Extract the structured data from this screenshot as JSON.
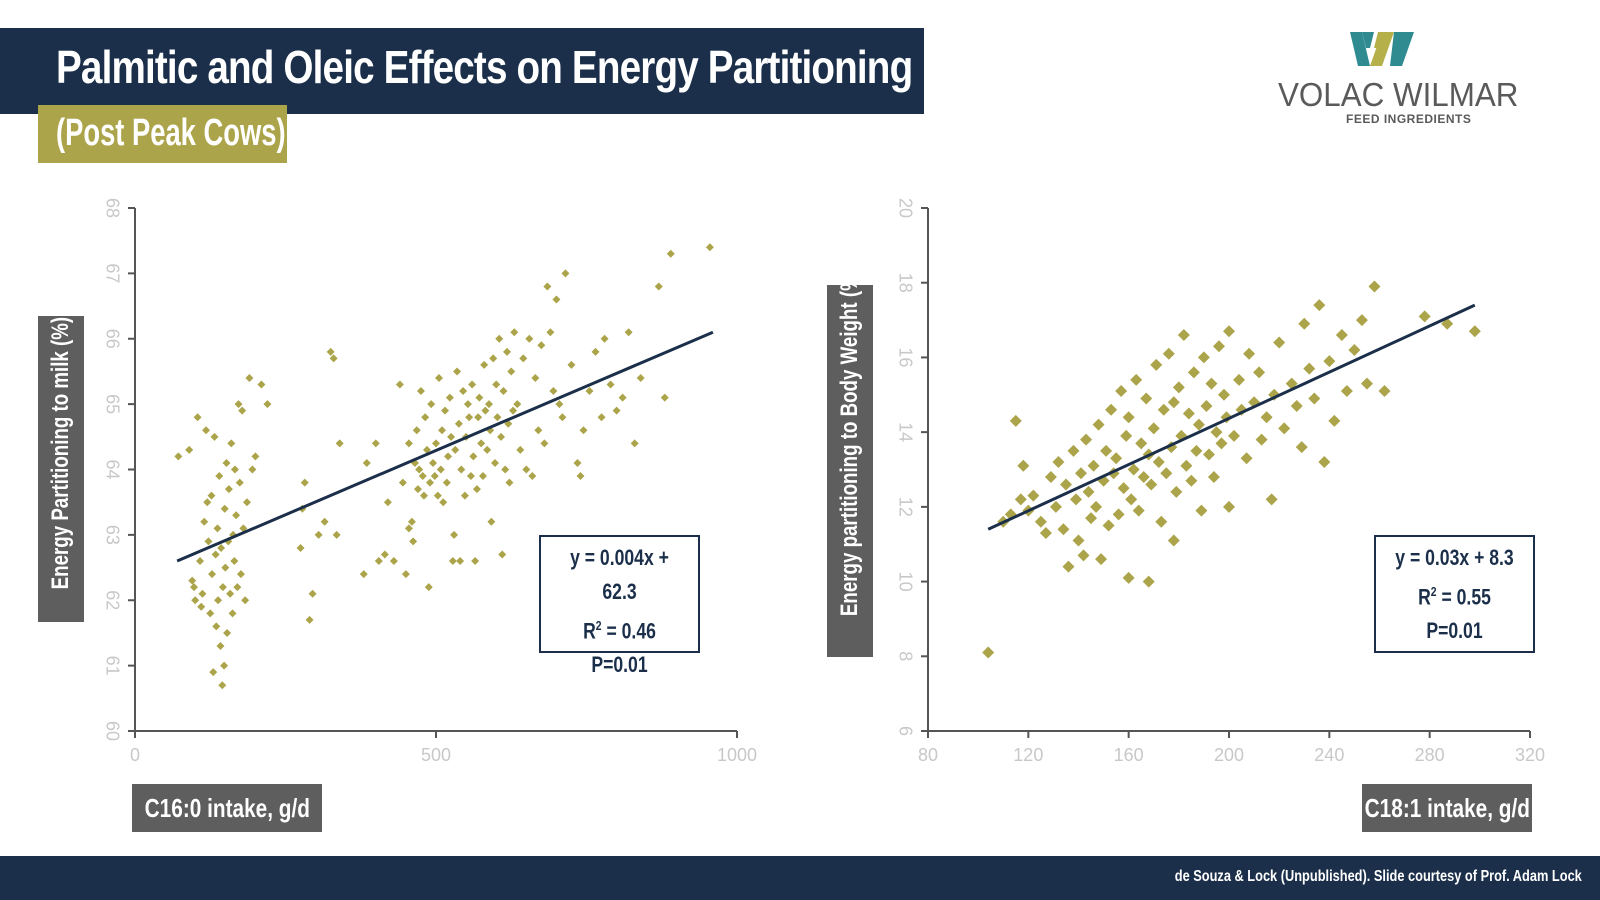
{
  "header": {
    "title": "Palmitic and Oleic Effects on Energy Partitioning",
    "subtitle": "(Post Peak Cows)"
  },
  "logo": {
    "name": "VOLAC WILMAR",
    "tagline": "FEED INGREDIENTS"
  },
  "footer": {
    "credit": "de Souza & Lock (Unpublished). Slide courtesy of Prof. Adam Lock"
  },
  "colors": {
    "navy": "#1b2f4a",
    "olive": "#aca44a",
    "gray": "#5e5e5e"
  },
  "chart_data": [
    {
      "type": "scatter",
      "title": "",
      "xlabel": "C16:0 intake, g/d",
      "ylabel": "Energy Partitioning to milk (%)",
      "xlim": [
        0,
        1000
      ],
      "ylim": [
        60,
        68
      ],
      "xticks": [
        0,
        500,
        1000
      ],
      "yticks": [
        60,
        61,
        62,
        63,
        64,
        65,
        66,
        67,
        68
      ],
      "trend": {
        "x": [
          70,
          960
        ],
        "y": [
          62.6,
          66.1
        ]
      },
      "equation": {
        "line1": "y = 0.004x + 62.3",
        "r_label": "R",
        "r_sup": "2",
        "r_value": " = 0.46",
        "p": "P=0.01"
      },
      "points": [
        [
          72,
          64.2
        ],
        [
          90,
          64.3
        ],
        [
          95,
          62.3
        ],
        [
          98,
          62.2
        ],
        [
          100,
          62.0
        ],
        [
          104,
          64.8
        ],
        [
          108,
          62.6
        ],
        [
          110,
          61.9
        ],
        [
          112,
          62.1
        ],
        [
          115,
          63.2
        ],
        [
          118,
          64.6
        ],
        [
          120,
          63.5
        ],
        [
          122,
          62.9
        ],
        [
          125,
          61.8
        ],
        [
          127,
          63.6
        ],
        [
          128,
          62.4
        ],
        [
          130,
          60.9
        ],
        [
          132,
          64.5
        ],
        [
          134,
          62.7
        ],
        [
          135,
          61.6
        ],
        [
          137,
          63.1
        ],
        [
          138,
          62.0
        ],
        [
          140,
          63.9
        ],
        [
          142,
          61.3
        ],
        [
          143,
          62.8
        ],
        [
          145,
          60.7
        ],
        [
          146,
          62.2
        ],
        [
          148,
          61.0
        ],
        [
          149,
          63.4
        ],
        [
          150,
          62.5
        ],
        [
          152,
          64.1
        ],
        [
          153,
          61.5
        ],
        [
          155,
          62.9
        ],
        [
          156,
          63.7
        ],
        [
          158,
          62.1
        ],
        [
          160,
          64.4
        ],
        [
          162,
          61.8
        ],
        [
          163,
          63.0
        ],
        [
          165,
          62.6
        ],
        [
          166,
          64.0
        ],
        [
          168,
          63.3
        ],
        [
          170,
          62.2
        ],
        [
          172,
          65.0
        ],
        [
          174,
          63.8
        ],
        [
          176,
          62.4
        ],
        [
          178,
          64.9
        ],
        [
          180,
          63.1
        ],
        [
          183,
          62.0
        ],
        [
          186,
          63.5
        ],
        [
          190,
          65.4
        ],
        [
          195,
          64.0
        ],
        [
          200,
          64.2
        ],
        [
          210,
          65.3
        ],
        [
          220,
          65.0
        ],
        [
          275,
          62.8
        ],
        [
          278,
          63.4
        ],
        [
          282,
          63.8
        ],
        [
          290,
          61.7
        ],
        [
          295,
          62.1
        ],
        [
          305,
          63.0
        ],
        [
          315,
          63.2
        ],
        [
          325,
          65.8
        ],
        [
          330,
          65.7
        ],
        [
          335,
          63.0
        ],
        [
          340,
          64.4
        ],
        [
          380,
          62.4
        ],
        [
          385,
          64.1
        ],
        [
          400,
          64.4
        ],
        [
          405,
          62.6
        ],
        [
          415,
          62.7
        ],
        [
          420,
          63.5
        ],
        [
          430,
          62.6
        ],
        [
          440,
          65.3
        ],
        [
          445,
          63.8
        ],
        [
          450,
          62.4
        ],
        [
          455,
          63.1
        ],
        [
          455,
          64.4
        ],
        [
          460,
          63.2
        ],
        [
          462,
          62.9
        ],
        [
          465,
          64.1
        ],
        [
          468,
          64.6
        ],
        [
          470,
          63.7
        ],
        [
          472,
          64.0
        ],
        [
          475,
          65.2
        ],
        [
          478,
          63.9
        ],
        [
          480,
          63.6
        ],
        [
          482,
          64.8
        ],
        [
          485,
          64.3
        ],
        [
          488,
          62.2
        ],
        [
          490,
          63.8
        ],
        [
          492,
          65.0
        ],
        [
          495,
          64.1
        ],
        [
          498,
          63.9
        ],
        [
          500,
          64.4
        ],
        [
          503,
          63.6
        ],
        [
          505,
          65.4
        ],
        [
          508,
          64.0
        ],
        [
          510,
          64.6
        ],
        [
          512,
          63.5
        ],
        [
          515,
          64.9
        ],
        [
          518,
          63.8
        ],
        [
          520,
          64.2
        ],
        [
          523,
          65.1
        ],
        [
          525,
          64.5
        ],
        [
          528,
          62.6
        ],
        [
          530,
          63.0
        ],
        [
          532,
          64.3
        ],
        [
          535,
          65.5
        ],
        [
          538,
          64.7
        ],
        [
          540,
          62.6
        ],
        [
          542,
          64.0
        ],
        [
          545,
          65.2
        ],
        [
          548,
          63.6
        ],
        [
          550,
          64.5
        ],
        [
          553,
          65.0
        ],
        [
          555,
          64.8
        ],
        [
          558,
          63.9
        ],
        [
          560,
          65.3
        ],
        [
          562,
          64.2
        ],
        [
          565,
          62.6
        ],
        [
          568,
          63.7
        ],
        [
          570,
          64.8
        ],
        [
          572,
          65.1
        ],
        [
          575,
          64.4
        ],
        [
          578,
          63.9
        ],
        [
          580,
          65.6
        ],
        [
          582,
          64.9
        ],
        [
          585,
          64.3
        ],
        [
          588,
          65.0
        ],
        [
          590,
          64.6
        ],
        [
          592,
          63.2
        ],
        [
          595,
          65.7
        ],
        [
          598,
          64.1
        ],
        [
          600,
          65.3
        ],
        [
          602,
          64.8
        ],
        [
          605,
          66.0
        ],
        [
          608,
          64.5
        ],
        [
          610,
          62.7
        ],
        [
          612,
          65.2
        ],
        [
          615,
          64.0
        ],
        [
          618,
          65.8
        ],
        [
          620,
          64.7
        ],
        [
          622,
          63.8
        ],
        [
          625,
          65.5
        ],
        [
          628,
          64.9
        ],
        [
          630,
          66.1
        ],
        [
          635,
          65.0
        ],
        [
          640,
          64.3
        ],
        [
          645,
          65.7
        ],
        [
          650,
          64.0
        ],
        [
          655,
          66.0
        ],
        [
          660,
          63.9
        ],
        [
          665,
          65.4
        ],
        [
          670,
          64.6
        ],
        [
          675,
          65.9
        ],
        [
          680,
          64.4
        ],
        [
          685,
          66.8
        ],
        [
          690,
          66.1
        ],
        [
          695,
          65.2
        ],
        [
          700,
          66.6
        ],
        [
          705,
          65.0
        ],
        [
          710,
          64.8
        ],
        [
          715,
          67.0
        ],
        [
          725,
          65.6
        ],
        [
          735,
          64.1
        ],
        [
          740,
          63.9
        ],
        [
          745,
          64.6
        ],
        [
          755,
          65.2
        ],
        [
          765,
          65.8
        ],
        [
          775,
          64.8
        ],
        [
          780,
          66.0
        ],
        [
          790,
          65.3
        ],
        [
          800,
          64.9
        ],
        [
          810,
          65.1
        ],
        [
          820,
          66.1
        ],
        [
          830,
          64.4
        ],
        [
          840,
          65.4
        ],
        [
          870,
          66.8
        ],
        [
          880,
          65.1
        ],
        [
          890,
          67.3
        ],
        [
          955,
          67.4
        ]
      ]
    },
    {
      "type": "scatter",
      "title": "",
      "xlabel": "C18:1 intake, g/d",
      "ylabel": "Energy partitioning to Body Weight (%)",
      "xlim": [
        80,
        320
      ],
      "ylim": [
        6,
        20
      ],
      "xticks": [
        80,
        120,
        160,
        200,
        240,
        280,
        320
      ],
      "yticks": [
        6,
        8,
        10,
        12,
        14,
        16,
        18,
        20
      ],
      "trend": {
        "x": [
          104,
          298
        ],
        "y": [
          11.4,
          17.4
        ]
      },
      "equation": {
        "line1": "y = 0.03x + 8.3",
        "r_label": "R",
        "r_sup": "2",
        "r_value": " = 0.55",
        "p": "P=0.01"
      },
      "points": [
        [
          104,
          8.1
        ],
        [
          110,
          11.6
        ],
        [
          113,
          11.8
        ],
        [
          115,
          14.3
        ],
        [
          117,
          12.2
        ],
        [
          118,
          13.1
        ],
        [
          120,
          11.9
        ],
        [
          122,
          12.3
        ],
        [
          125,
          11.6
        ],
        [
          127,
          11.3
        ],
        [
          129,
          12.8
        ],
        [
          131,
          12.0
        ],
        [
          132,
          13.2
        ],
        [
          134,
          11.4
        ],
        [
          135,
          12.6
        ],
        [
          136,
          10.4
        ],
        [
          138,
          13.5
        ],
        [
          139,
          12.2
        ],
        [
          140,
          11.1
        ],
        [
          141,
          12.9
        ],
        [
          142,
          10.7
        ],
        [
          143,
          13.8
        ],
        [
          144,
          12.4
        ],
        [
          145,
          11.7
        ],
        [
          146,
          13.1
        ],
        [
          147,
          12.0
        ],
        [
          148,
          14.2
        ],
        [
          149,
          10.6
        ],
        [
          150,
          12.7
        ],
        [
          151,
          13.5
        ],
        [
          152,
          11.5
        ],
        [
          153,
          14.6
        ],
        [
          154,
          12.9
        ],
        [
          155,
          13.3
        ],
        [
          156,
          11.8
        ],
        [
          157,
          15.1
        ],
        [
          158,
          12.5
        ],
        [
          159,
          13.9
        ],
        [
          160,
          10.1
        ],
        [
          160,
          14.4
        ],
        [
          161,
          12.2
        ],
        [
          162,
          13.0
        ],
        [
          163,
          15.4
        ],
        [
          164,
          11.9
        ],
        [
          165,
          13.7
        ],
        [
          166,
          12.8
        ],
        [
          167,
          14.9
        ],
        [
          168,
          10.0
        ],
        [
          168,
          13.4
        ],
        [
          169,
          12.6
        ],
        [
          170,
          14.1
        ],
        [
          171,
          15.8
        ],
        [
          172,
          13.2
        ],
        [
          173,
          11.6
        ],
        [
          174,
          14.6
        ],
        [
          175,
          12.9
        ],
        [
          176,
          16.1
        ],
        [
          177,
          13.6
        ],
        [
          178,
          11.1
        ],
        [
          178,
          14.8
        ],
        [
          179,
          12.4
        ],
        [
          180,
          15.2
        ],
        [
          181,
          13.9
        ],
        [
          182,
          16.6
        ],
        [
          183,
          13.1
        ],
        [
          184,
          14.5
        ],
        [
          185,
          12.7
        ],
        [
          186,
          15.6
        ],
        [
          187,
          13.5
        ],
        [
          188,
          14.2
        ],
        [
          189,
          11.9
        ],
        [
          190,
          16.0
        ],
        [
          191,
          14.7
        ],
        [
          192,
          13.4
        ],
        [
          193,
          15.3
        ],
        [
          194,
          12.8
        ],
        [
          195,
          14.0
        ],
        [
          196,
          16.3
        ],
        [
          197,
          13.7
        ],
        [
          198,
          15.0
        ],
        [
          199,
          14.4
        ],
        [
          200,
          12.0
        ],
        [
          200,
          16.7
        ],
        [
          202,
          13.9
        ],
        [
          204,
          15.4
        ],
        [
          205,
          14.6
        ],
        [
          207,
          13.3
        ],
        [
          208,
          16.1
        ],
        [
          210,
          14.8
        ],
        [
          212,
          15.6
        ],
        [
          213,
          13.8
        ],
        [
          215,
          14.4
        ],
        [
          217,
          12.2
        ],
        [
          218,
          15.0
        ],
        [
          220,
          16.4
        ],
        [
          222,
          14.1
        ],
        [
          225,
          15.3
        ],
        [
          227,
          14.7
        ],
        [
          229,
          13.6
        ],
        [
          230,
          16.9
        ],
        [
          232,
          15.7
        ],
        [
          234,
          14.9
        ],
        [
          236,
          17.4
        ],
        [
          238,
          13.2
        ],
        [
          240,
          15.9
        ],
        [
          242,
          14.3
        ],
        [
          245,
          16.6
        ],
        [
          247,
          15.1
        ],
        [
          250,
          16.2
        ],
        [
          253,
          17.0
        ],
        [
          255,
          15.3
        ],
        [
          258,
          17.9
        ],
        [
          262,
          15.1
        ],
        [
          278,
          17.1
        ],
        [
          287,
          16.9
        ],
        [
          298,
          16.7
        ]
      ]
    }
  ]
}
